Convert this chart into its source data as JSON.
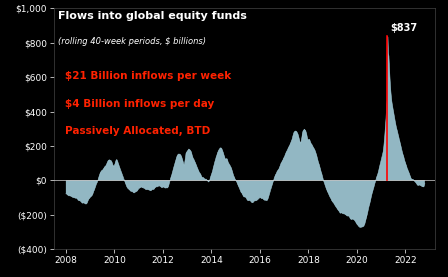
{
  "title": "Flows into global equity funds",
  "subtitle": "(rolling 40-week periods, $ billions)",
  "annotation_lines": [
    "$21 Billion inflows per week",
    "$4 Billion inflows per day",
    "Passively Allocated, BTD"
  ],
  "annotation_color": "#ff2200",
  "peak_label": "$837",
  "peak_label_color": "#ffffff",
  "background_color": "#000000",
  "plot_bg_color": "#000000",
  "fill_color": "#add8e6",
  "line_color": "#add8e6",
  "spike_color": "#ff0000",
  "title_color": "#ffffff",
  "subtitle_color": "#ffffff",
  "tick_color": "#ffffff",
  "ylim": [
    -400,
    1000
  ],
  "yticks": [
    -400,
    -200,
    0,
    200,
    400,
    600,
    800,
    1000
  ],
  "xlim_start": 2007.5,
  "xlim_end": 2023.2,
  "xticks": [
    2008,
    2010,
    2012,
    2014,
    2016,
    2018,
    2020,
    2022
  ]
}
